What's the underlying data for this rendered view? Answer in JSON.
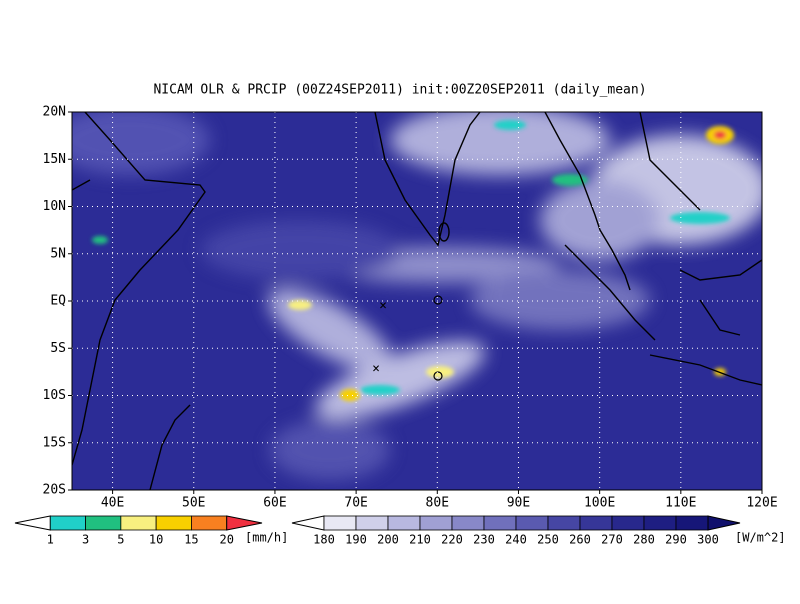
{
  "map": {
    "title": "NICAM OLR & PRCIP (00Z24SEP2011) init:00Z20SEP2011 (daily_mean)",
    "xlim": [
      35,
      120
    ],
    "ylim": [
      -20,
      20
    ],
    "xticks": [
      {
        "value": 40,
        "label": "40E"
      },
      {
        "value": 50,
        "label": "50E"
      },
      {
        "value": 60,
        "label": "60E"
      },
      {
        "value": 70,
        "label": "70E"
      },
      {
        "value": 80,
        "label": "80E"
      },
      {
        "value": 90,
        "label": "90E"
      },
      {
        "value": 100,
        "label": "100E"
      },
      {
        "value": 110,
        "label": "110E"
      },
      {
        "value": 120,
        "label": "120E"
      }
    ],
    "yticks": [
      {
        "value": 20,
        "label": "20N"
      },
      {
        "value": 15,
        "label": "15N"
      },
      {
        "value": 10,
        "label": "10N"
      },
      {
        "value": 5,
        "label": "5N"
      },
      {
        "value": 0,
        "label": "EQ"
      },
      {
        "value": -5,
        "label": "5S"
      },
      {
        "value": -10,
        "label": "10S"
      },
      {
        "value": -15,
        "label": "15S"
      },
      {
        "value": -20,
        "label": "20S"
      }
    ]
  },
  "legend_precip": {
    "labels": [
      "1",
      "3",
      "5",
      "10",
      "15",
      "20"
    ],
    "unit": "[mm/h]",
    "colors": [
      "#ffffff",
      "#20d0c8",
      "#20c080",
      "#f8f080",
      "#f8d000",
      "#f88020",
      "#f03040"
    ]
  },
  "legend_olr": {
    "labels": [
      "180",
      "190",
      "200",
      "210",
      "220",
      "230",
      "240",
      "250",
      "260",
      "270",
      "280",
      "290",
      "300"
    ],
    "unit": "[W/m^2]",
    "colors": [
      "#ffffff",
      "#e8e8f4",
      "#d0d0ea",
      "#b8b8e0",
      "#a0a0d4",
      "#8888c8",
      "#7070bc",
      "#5a5ab0",
      "#4646a4",
      "#363698",
      "#28288c",
      "#1e1e82",
      "#161678",
      "#10106c"
    ]
  }
}
